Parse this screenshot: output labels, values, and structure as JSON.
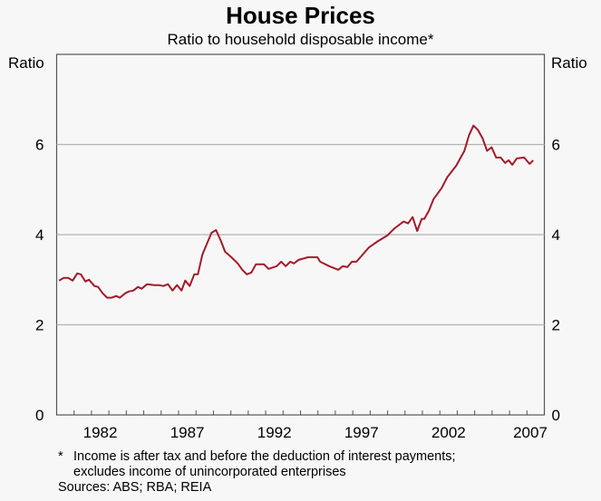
{
  "chart_data": {
    "type": "line",
    "title": "House Prices",
    "subtitle": "Ratio to household disposable income*",
    "ylabel_left": "Ratio",
    "ylabel_right": "Ratio",
    "xlim": [
      1980,
      2008
    ],
    "ylim": [
      0,
      8
    ],
    "yticks": [
      0,
      2,
      4,
      6
    ],
    "gridlines": [
      2,
      4,
      6
    ],
    "xtick_labels": [
      "1982",
      "1987",
      "1992",
      "1997",
      "2002",
      "2007"
    ],
    "line_color": "#a31a2a",
    "series": [
      {
        "name": "Ratio to household disposable income",
        "points": [
          [
            1980.14,
            2.98
          ],
          [
            1980.4,
            3.04
          ],
          [
            1980.66,
            3.04
          ],
          [
            1980.92,
            2.98
          ],
          [
            1981.18,
            3.14
          ],
          [
            1981.39,
            3.12
          ],
          [
            1981.65,
            2.96
          ],
          [
            1981.86,
            3.0
          ],
          [
            1982.17,
            2.86
          ],
          [
            1982.38,
            2.84
          ],
          [
            1982.64,
            2.7
          ],
          [
            1982.9,
            2.6
          ],
          [
            1983.16,
            2.6
          ],
          [
            1983.42,
            2.64
          ],
          [
            1983.63,
            2.6
          ],
          [
            1983.94,
            2.7
          ],
          [
            1984.15,
            2.74
          ],
          [
            1984.41,
            2.76
          ],
          [
            1984.67,
            2.84
          ],
          [
            1984.88,
            2.8
          ],
          [
            1985.19,
            2.9
          ],
          [
            1985.61,
            2.88
          ],
          [
            1985.87,
            2.88
          ],
          [
            1986.13,
            2.86
          ],
          [
            1986.39,
            2.9
          ],
          [
            1986.65,
            2.76
          ],
          [
            1986.91,
            2.88
          ],
          [
            1987.17,
            2.76
          ],
          [
            1987.38,
            2.98
          ],
          [
            1987.64,
            2.86
          ],
          [
            1987.9,
            3.12
          ],
          [
            1988.11,
            3.12
          ],
          [
            1988.37,
            3.56
          ],
          [
            1988.63,
            3.8
          ],
          [
            1988.89,
            4.04
          ],
          [
            1989.15,
            4.1
          ],
          [
            1989.41,
            3.88
          ],
          [
            1989.67,
            3.62
          ],
          [
            1990.03,
            3.5
          ],
          [
            1990.4,
            3.36
          ],
          [
            1990.66,
            3.22
          ],
          [
            1990.92,
            3.12
          ],
          [
            1991.18,
            3.16
          ],
          [
            1991.44,
            3.34
          ],
          [
            1991.91,
            3.34
          ],
          [
            1992.17,
            3.24
          ],
          [
            1992.63,
            3.3
          ],
          [
            1992.89,
            3.4
          ],
          [
            1993.15,
            3.3
          ],
          [
            1993.41,
            3.4
          ],
          [
            1993.62,
            3.36
          ],
          [
            1993.88,
            3.44
          ],
          [
            1994.45,
            3.5
          ],
          [
            1994.97,
            3.5
          ],
          [
            1995.13,
            3.4
          ],
          [
            1995.65,
            3.3
          ],
          [
            1996.17,
            3.22
          ],
          [
            1996.43,
            3.3
          ],
          [
            1996.69,
            3.28
          ],
          [
            1996.95,
            3.4
          ],
          [
            1997.21,
            3.4
          ],
          [
            1997.94,
            3.72
          ],
          [
            1998.46,
            3.86
          ],
          [
            1998.98,
            3.98
          ],
          [
            1999.4,
            4.14
          ],
          [
            1999.92,
            4.29
          ],
          [
            2000.18,
            4.25
          ],
          [
            2000.44,
            4.39
          ],
          [
            2000.7,
            4.08
          ],
          [
            2000.96,
            4.35
          ],
          [
            2001.11,
            4.35
          ],
          [
            2001.37,
            4.53
          ],
          [
            2001.64,
            4.79
          ],
          [
            2002.1,
            5.03
          ],
          [
            2002.42,
            5.27
          ],
          [
            2002.94,
            5.53
          ],
          [
            2003.41,
            5.86
          ],
          [
            2003.67,
            6.2
          ],
          [
            2003.93,
            6.42
          ],
          [
            2004.19,
            6.32
          ],
          [
            2004.45,
            6.14
          ],
          [
            2004.71,
            5.86
          ],
          [
            2004.97,
            5.94
          ],
          [
            2005.23,
            5.71
          ],
          [
            2005.49,
            5.71
          ],
          [
            2005.75,
            5.59
          ],
          [
            2005.95,
            5.65
          ],
          [
            2006.16,
            5.55
          ],
          [
            2006.42,
            5.69
          ],
          [
            2006.84,
            5.71
          ],
          [
            2007.15,
            5.57
          ],
          [
            2007.36,
            5.65
          ]
        ]
      }
    ]
  },
  "footnotes": {
    "asterisk": "*",
    "line1": "Income is after tax and before the deduction of interest payments;",
    "line2": "excludes income of unincorporated enterprises",
    "sources": "Sources: ABS; RBA; REIA"
  }
}
